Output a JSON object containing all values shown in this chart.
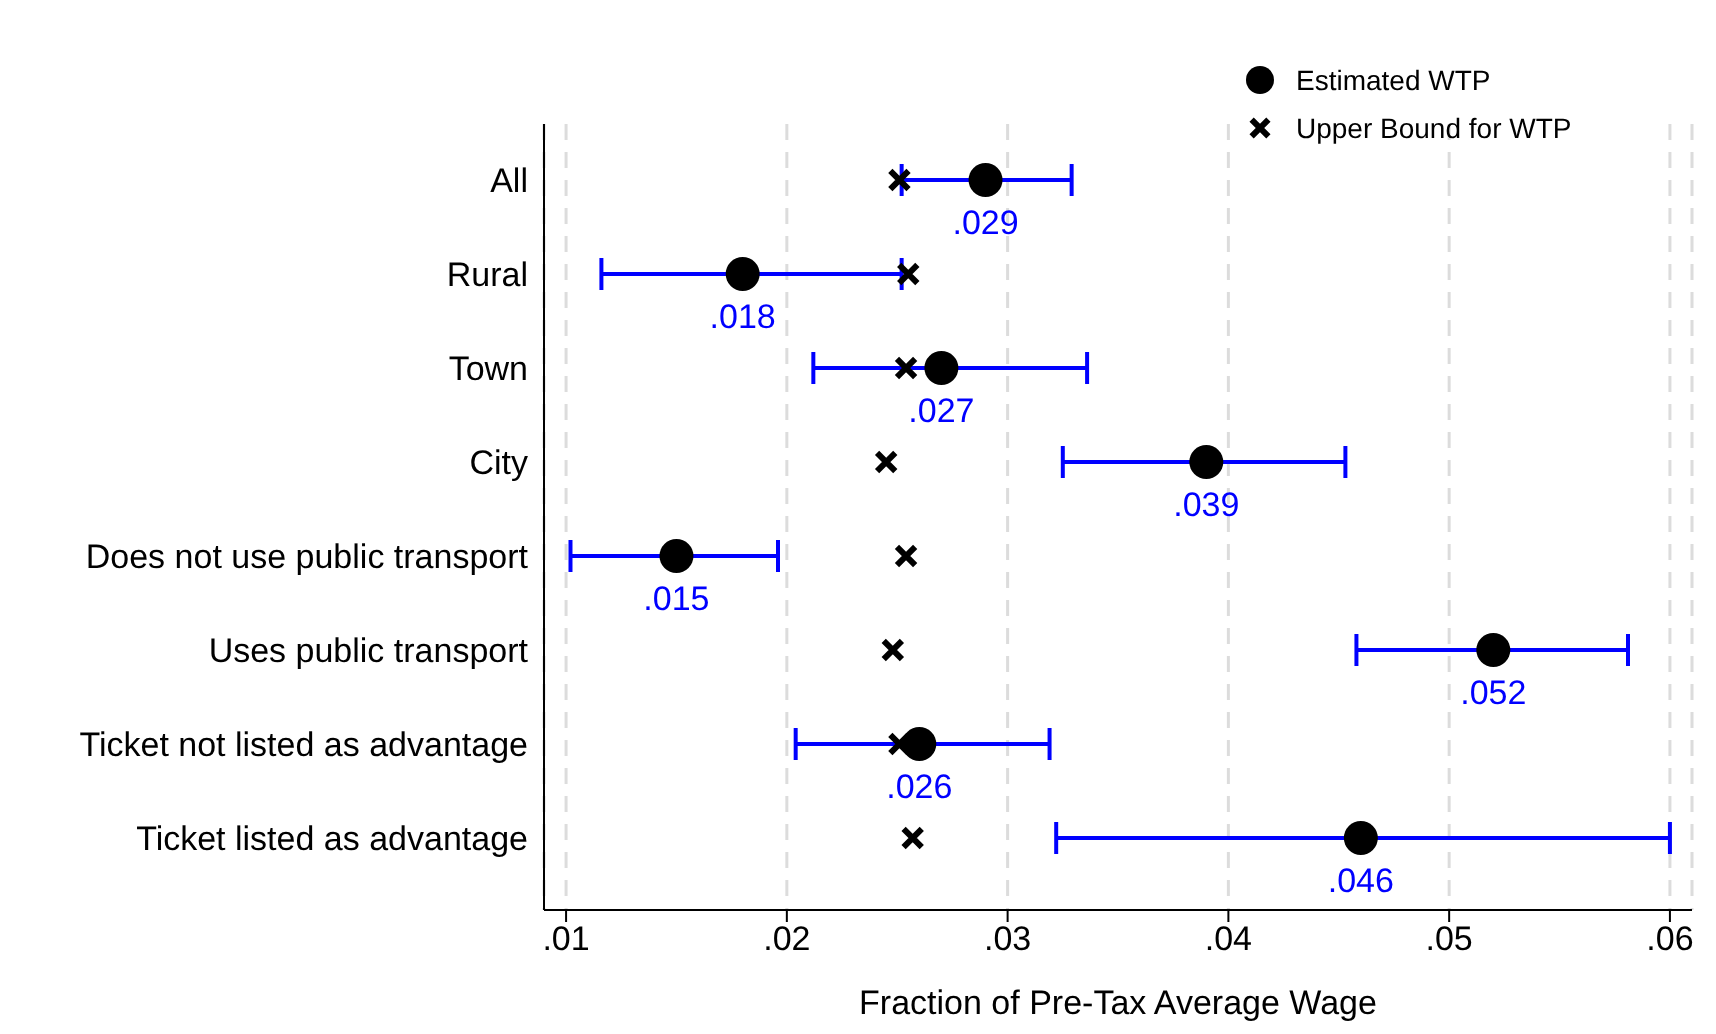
{
  "chart_data": {
    "type": "scatter",
    "orientation": "horizontal",
    "xlabel": "Fraction of Pre-Tax Average Wage",
    "categories": [
      "All",
      "Rural",
      "Town",
      "City",
      "Does not use public transport",
      "Uses public transport",
      "Ticket not listed as advantage",
      "Ticket listed as advantage"
    ],
    "series": [
      {
        "name": "Estimated WTP",
        "color": "#000000",
        "marker": "circle",
        "values": [
          0.029,
          0.018,
          0.027,
          0.039,
          0.015,
          0.052,
          0.026,
          0.046
        ],
        "value_labels": [
          ".029",
          ".018",
          ".027",
          ".039",
          ".015",
          ".052",
          ".026",
          ".046"
        ],
        "errors": [
          [
            0.0252,
            0.0329
          ],
          [
            0.0116,
            0.0252
          ],
          [
            0.0212,
            0.0336
          ],
          [
            0.0325,
            0.0453
          ],
          [
            0.0102,
            0.0196
          ],
          [
            0.0458,
            0.0581
          ],
          [
            0.0204,
            0.0319
          ],
          [
            0.0322,
            0.06
          ]
        ]
      },
      {
        "name": "Upper Bound for WTP",
        "color": "#000000",
        "marker": "cross",
        "values": [
          0.0251,
          0.0255,
          0.0254,
          0.0245,
          0.0254,
          0.0248,
          0.0251,
          0.0257
        ]
      }
    ],
    "xlim": [
      0.009,
      0.061
    ],
    "xticks": [
      {
        "value": 0.01,
        "label": ".01"
      },
      {
        "value": 0.02,
        "label": ".02"
      },
      {
        "value": 0.03,
        "label": ".03"
      },
      {
        "value": 0.04,
        "label": ".04"
      },
      {
        "value": 0.05,
        "label": ".05"
      },
      {
        "value": 0.06,
        "label": ".06"
      }
    ],
    "grid": "x",
    "legend": "top right"
  }
}
